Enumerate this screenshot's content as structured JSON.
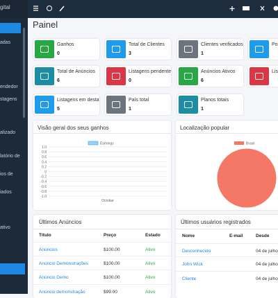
{
  "sidebar": {
    "brand": "gital",
    "items": [
      "adas",
      "endedor",
      "stagens",
      "alizado",
      "latório de",
      "ios de",
      "iados",
      "ativo"
    ]
  },
  "page_title": "Painel",
  "cards": [
    {
      "label": "Ganhos",
      "value": 0,
      "color": "#28a745"
    },
    {
      "label": "Total de Clientes",
      "value": 3,
      "color": "#1e9bea"
    },
    {
      "label": "Clientes verificados",
      "value": 1,
      "color": "#6c757d"
    },
    {
      "label": "Postag",
      "value": null,
      "color": "#1e9bea"
    },
    {
      "label": "Total de Anúncios",
      "value": 6,
      "color": "#1b8ea3"
    },
    {
      "label": "Listagens pendentes",
      "value": 0,
      "color": "#dc3545"
    },
    {
      "label": "Anúncios Ativos",
      "value": 6,
      "color": "#28a745"
    },
    {
      "label": "Lis",
      "value": null,
      "color": "#dc3545"
    },
    {
      "label": "Listagens em destaque",
      "value": 5,
      "color": "#1e9bea"
    },
    {
      "label": "País total",
      "value": 1,
      "color": "#6c757d"
    },
    {
      "label": "Planos totais",
      "value": 1,
      "color": "#1b8ea3"
    }
  ],
  "chart_data": [
    {
      "type": "line",
      "title": "Visão geral dos seus ganhos",
      "categories": [
        "Octobar"
      ],
      "series": [
        {
          "name": "Earnings",
          "color": "#36a2eb",
          "values": [
            null
          ]
        }
      ],
      "ylim": [
        -1,
        1
      ],
      "yticks": [
        {
          "value": 1,
          "label": "1.0"
        },
        0.8,
        0.6,
        0.4,
        0.2,
        0,
        -0.2,
        -0.4,
        -0.6,
        -0.8,
        {
          "value": -1,
          "label": "-1.0"
        }
      ],
      "grid": true
    },
    {
      "type": "pie",
      "title": "Localização popular",
      "categories": [
        "Brasil"
      ],
      "values": [
        1
      ],
      "colors": [
        "#f47865"
      ]
    }
  ],
  "tables": [
    {
      "title": "Últimos Anúncios",
      "headers": [
        "Título",
        "Preço",
        "Estado"
      ],
      "rows": [
        [
          "Anúncios",
          "$100.00",
          "Ativo"
        ],
        [
          "Anúncio Demonstrações",
          "$100.00",
          "Ativo"
        ],
        [
          "Anúncio Demo",
          "$100.00",
          "Ativo"
        ],
        [
          "Anúncio demonstração",
          "$99.00",
          "Ativo"
        ]
      ]
    },
    {
      "title": "Últimos usuários registrados",
      "headers": [
        "Nome",
        "E-mail",
        "Desde"
      ],
      "rows": [
        [
          "Desconhecido",
          "",
          "04 de julho d"
        ],
        [
          "John Wick",
          "",
          "04 de julho d"
        ],
        [
          "Cliente",
          "",
          "04 de julho d"
        ]
      ]
    }
  ]
}
